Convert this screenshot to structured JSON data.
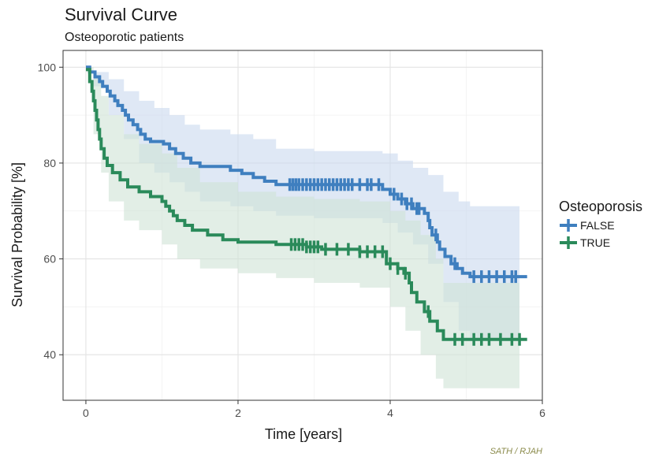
{
  "chart_data": {
    "type": "line",
    "subtype": "kaplan-meier",
    "title": "Survival Curve",
    "subtitle": "Osteoporotic patients",
    "xlabel": "Time [years]",
    "ylabel": "Survival Probability [%]",
    "xlim": [
      -0.3,
      6.0
    ],
    "ylim": [
      30.5,
      103.5
    ],
    "xticks": [
      0,
      2,
      4,
      6
    ],
    "yticks": [
      40,
      60,
      80,
      100
    ],
    "grid": true,
    "legend": {
      "title": "Osteoporosis",
      "placement": "right"
    },
    "caption": "SATH / RJAH",
    "series": [
      {
        "name": "FALSE",
        "color": "#3f7fbf",
        "band_color": "#c9d9ee",
        "steps": [
          [
            0,
            100
          ],
          [
            0.05,
            99
          ],
          [
            0.12,
            98
          ],
          [
            0.18,
            97
          ],
          [
            0.22,
            96
          ],
          [
            0.28,
            95
          ],
          [
            0.32,
            94
          ],
          [
            0.38,
            93
          ],
          [
            0.42,
            92
          ],
          [
            0.48,
            91
          ],
          [
            0.52,
            90
          ],
          [
            0.56,
            89
          ],
          [
            0.62,
            88
          ],
          [
            0.68,
            87
          ],
          [
            0.72,
            86
          ],
          [
            0.78,
            85
          ],
          [
            0.85,
            84.5
          ],
          [
            1.02,
            84
          ],
          [
            1.1,
            83
          ],
          [
            1.18,
            82
          ],
          [
            1.28,
            81
          ],
          [
            1.38,
            80
          ],
          [
            1.5,
            79.3
          ],
          [
            1.9,
            78.5
          ],
          [
            2.05,
            77.8
          ],
          [
            2.2,
            77
          ],
          [
            2.35,
            76.2
          ],
          [
            2.5,
            75.5
          ],
          [
            3.9,
            74.5
          ],
          [
            4.0,
            73.5
          ],
          [
            4.1,
            72.5
          ],
          [
            4.2,
            71.5
          ],
          [
            4.3,
            70.5
          ],
          [
            4.45,
            69.5
          ],
          [
            4.5,
            68
          ],
          [
            4.52,
            66.5
          ],
          [
            4.55,
            65
          ],
          [
            4.62,
            63.5
          ],
          [
            4.65,
            62
          ],
          [
            4.72,
            60.5
          ],
          [
            4.8,
            59
          ],
          [
            4.88,
            58
          ],
          [
            4.95,
            57
          ],
          [
            5.05,
            56.3
          ]
        ],
        "end_x": 5.8,
        "ci_upper": [
          [
            0,
            100
          ],
          [
            0.1,
            99
          ],
          [
            0.3,
            97.5
          ],
          [
            0.5,
            95
          ],
          [
            0.7,
            93
          ],
          [
            0.9,
            91.5
          ],
          [
            1.1,
            90
          ],
          [
            1.3,
            88
          ],
          [
            1.5,
            87
          ],
          [
            1.9,
            86
          ],
          [
            2.2,
            85
          ],
          [
            2.5,
            83
          ],
          [
            3.0,
            82.5
          ],
          [
            3.9,
            82
          ],
          [
            4.1,
            80.5
          ],
          [
            4.3,
            79
          ],
          [
            4.5,
            77.5
          ],
          [
            4.7,
            74
          ],
          [
            4.9,
            72
          ],
          [
            5.05,
            71
          ]
        ],
        "ci_lower": [
          [
            0,
            100
          ],
          [
            0.1,
            96
          ],
          [
            0.3,
            90
          ],
          [
            0.5,
            85
          ],
          [
            0.7,
            80
          ],
          [
            0.9,
            78
          ],
          [
            1.1,
            76
          ],
          [
            1.3,
            74
          ],
          [
            1.5,
            72
          ],
          [
            1.9,
            71
          ],
          [
            2.2,
            70
          ],
          [
            2.5,
            69
          ],
          [
            3.0,
            68.5
          ],
          [
            3.9,
            67.5
          ],
          [
            4.1,
            65.5
          ],
          [
            4.3,
            63
          ],
          [
            4.5,
            59
          ],
          [
            4.7,
            51
          ],
          [
            4.9,
            45
          ],
          [
            5.05,
            43
          ]
        ],
        "ci_end_x": 5.7,
        "censored": [
          2.68,
          2.72,
          2.76,
          2.8,
          2.85,
          2.9,
          2.95,
          3.0,
          3.05,
          3.1,
          3.15,
          3.2,
          3.25,
          3.3,
          3.35,
          3.4,
          3.45,
          3.5,
          3.6,
          3.7,
          3.75,
          3.85,
          4.05,
          4.15,
          4.22,
          4.28,
          4.35,
          4.38,
          4.6,
          4.85,
          5.1,
          5.2,
          5.3,
          5.4,
          5.5,
          5.6,
          5.65
        ]
      },
      {
        "name": "TRUE",
        "color": "#2a8a5a",
        "band_color": "#cfe3d6",
        "steps": [
          [
            0,
            99.5
          ],
          [
            0.05,
            97
          ],
          [
            0.08,
            95
          ],
          [
            0.1,
            93
          ],
          [
            0.12,
            91
          ],
          [
            0.14,
            89
          ],
          [
            0.16,
            87
          ],
          [
            0.18,
            85
          ],
          [
            0.2,
            83
          ],
          [
            0.24,
            81
          ],
          [
            0.28,
            79.5
          ],
          [
            0.35,
            78
          ],
          [
            0.45,
            76.5
          ],
          [
            0.55,
            75
          ],
          [
            0.7,
            74
          ],
          [
            0.85,
            73
          ],
          [
            1.0,
            72
          ],
          [
            1.05,
            71
          ],
          [
            1.1,
            70
          ],
          [
            1.15,
            69
          ],
          [
            1.2,
            68
          ],
          [
            1.3,
            67
          ],
          [
            1.4,
            66
          ],
          [
            1.6,
            65
          ],
          [
            1.8,
            64
          ],
          [
            2.0,
            63.5
          ],
          [
            2.5,
            63
          ],
          [
            2.9,
            62.5
          ],
          [
            3.1,
            62
          ],
          [
            3.6,
            61.5
          ],
          [
            3.95,
            59
          ],
          [
            4.1,
            58
          ],
          [
            4.18,
            57
          ],
          [
            4.25,
            55
          ],
          [
            4.28,
            53
          ],
          [
            4.35,
            51
          ],
          [
            4.45,
            49
          ],
          [
            4.52,
            47
          ],
          [
            4.62,
            45
          ],
          [
            4.7,
            43.2
          ]
        ],
        "end_x": 5.8,
        "ci_upper": [
          [
            0,
            100
          ],
          [
            0.1,
            98
          ],
          [
            0.2,
            94
          ],
          [
            0.3,
            90
          ],
          [
            0.5,
            86
          ],
          [
            0.7,
            84
          ],
          [
            1.0,
            82
          ],
          [
            1.2,
            79
          ],
          [
            1.5,
            76
          ],
          [
            2.0,
            74
          ],
          [
            2.5,
            73
          ],
          [
            3.0,
            72.5
          ],
          [
            3.6,
            72
          ],
          [
            4.0,
            70
          ],
          [
            4.2,
            68
          ],
          [
            4.4,
            65
          ],
          [
            4.6,
            60
          ],
          [
            4.7,
            55
          ]
        ],
        "ci_lower": [
          [
            0,
            99
          ],
          [
            0.1,
            86
          ],
          [
            0.2,
            78
          ],
          [
            0.3,
            72
          ],
          [
            0.5,
            68
          ],
          [
            0.7,
            66
          ],
          [
            1.0,
            63
          ],
          [
            1.2,
            60
          ],
          [
            1.5,
            58
          ],
          [
            2.0,
            57
          ],
          [
            2.5,
            56
          ],
          [
            3.0,
            55
          ],
          [
            3.6,
            54
          ],
          [
            4.0,
            50
          ],
          [
            4.2,
            45
          ],
          [
            4.4,
            40
          ],
          [
            4.6,
            35
          ],
          [
            4.7,
            33
          ]
        ],
        "ci_end_x": 5.7,
        "censored": [
          2.7,
          2.75,
          2.8,
          2.85,
          2.9,
          2.95,
          3.0,
          3.05,
          3.15,
          3.3,
          3.45,
          3.6,
          3.7,
          3.8,
          3.9,
          4.0,
          4.1,
          4.2,
          4.5,
          4.85,
          4.95,
          5.1,
          5.2,
          5.3,
          5.45,
          5.6,
          5.7
        ]
      }
    ]
  }
}
